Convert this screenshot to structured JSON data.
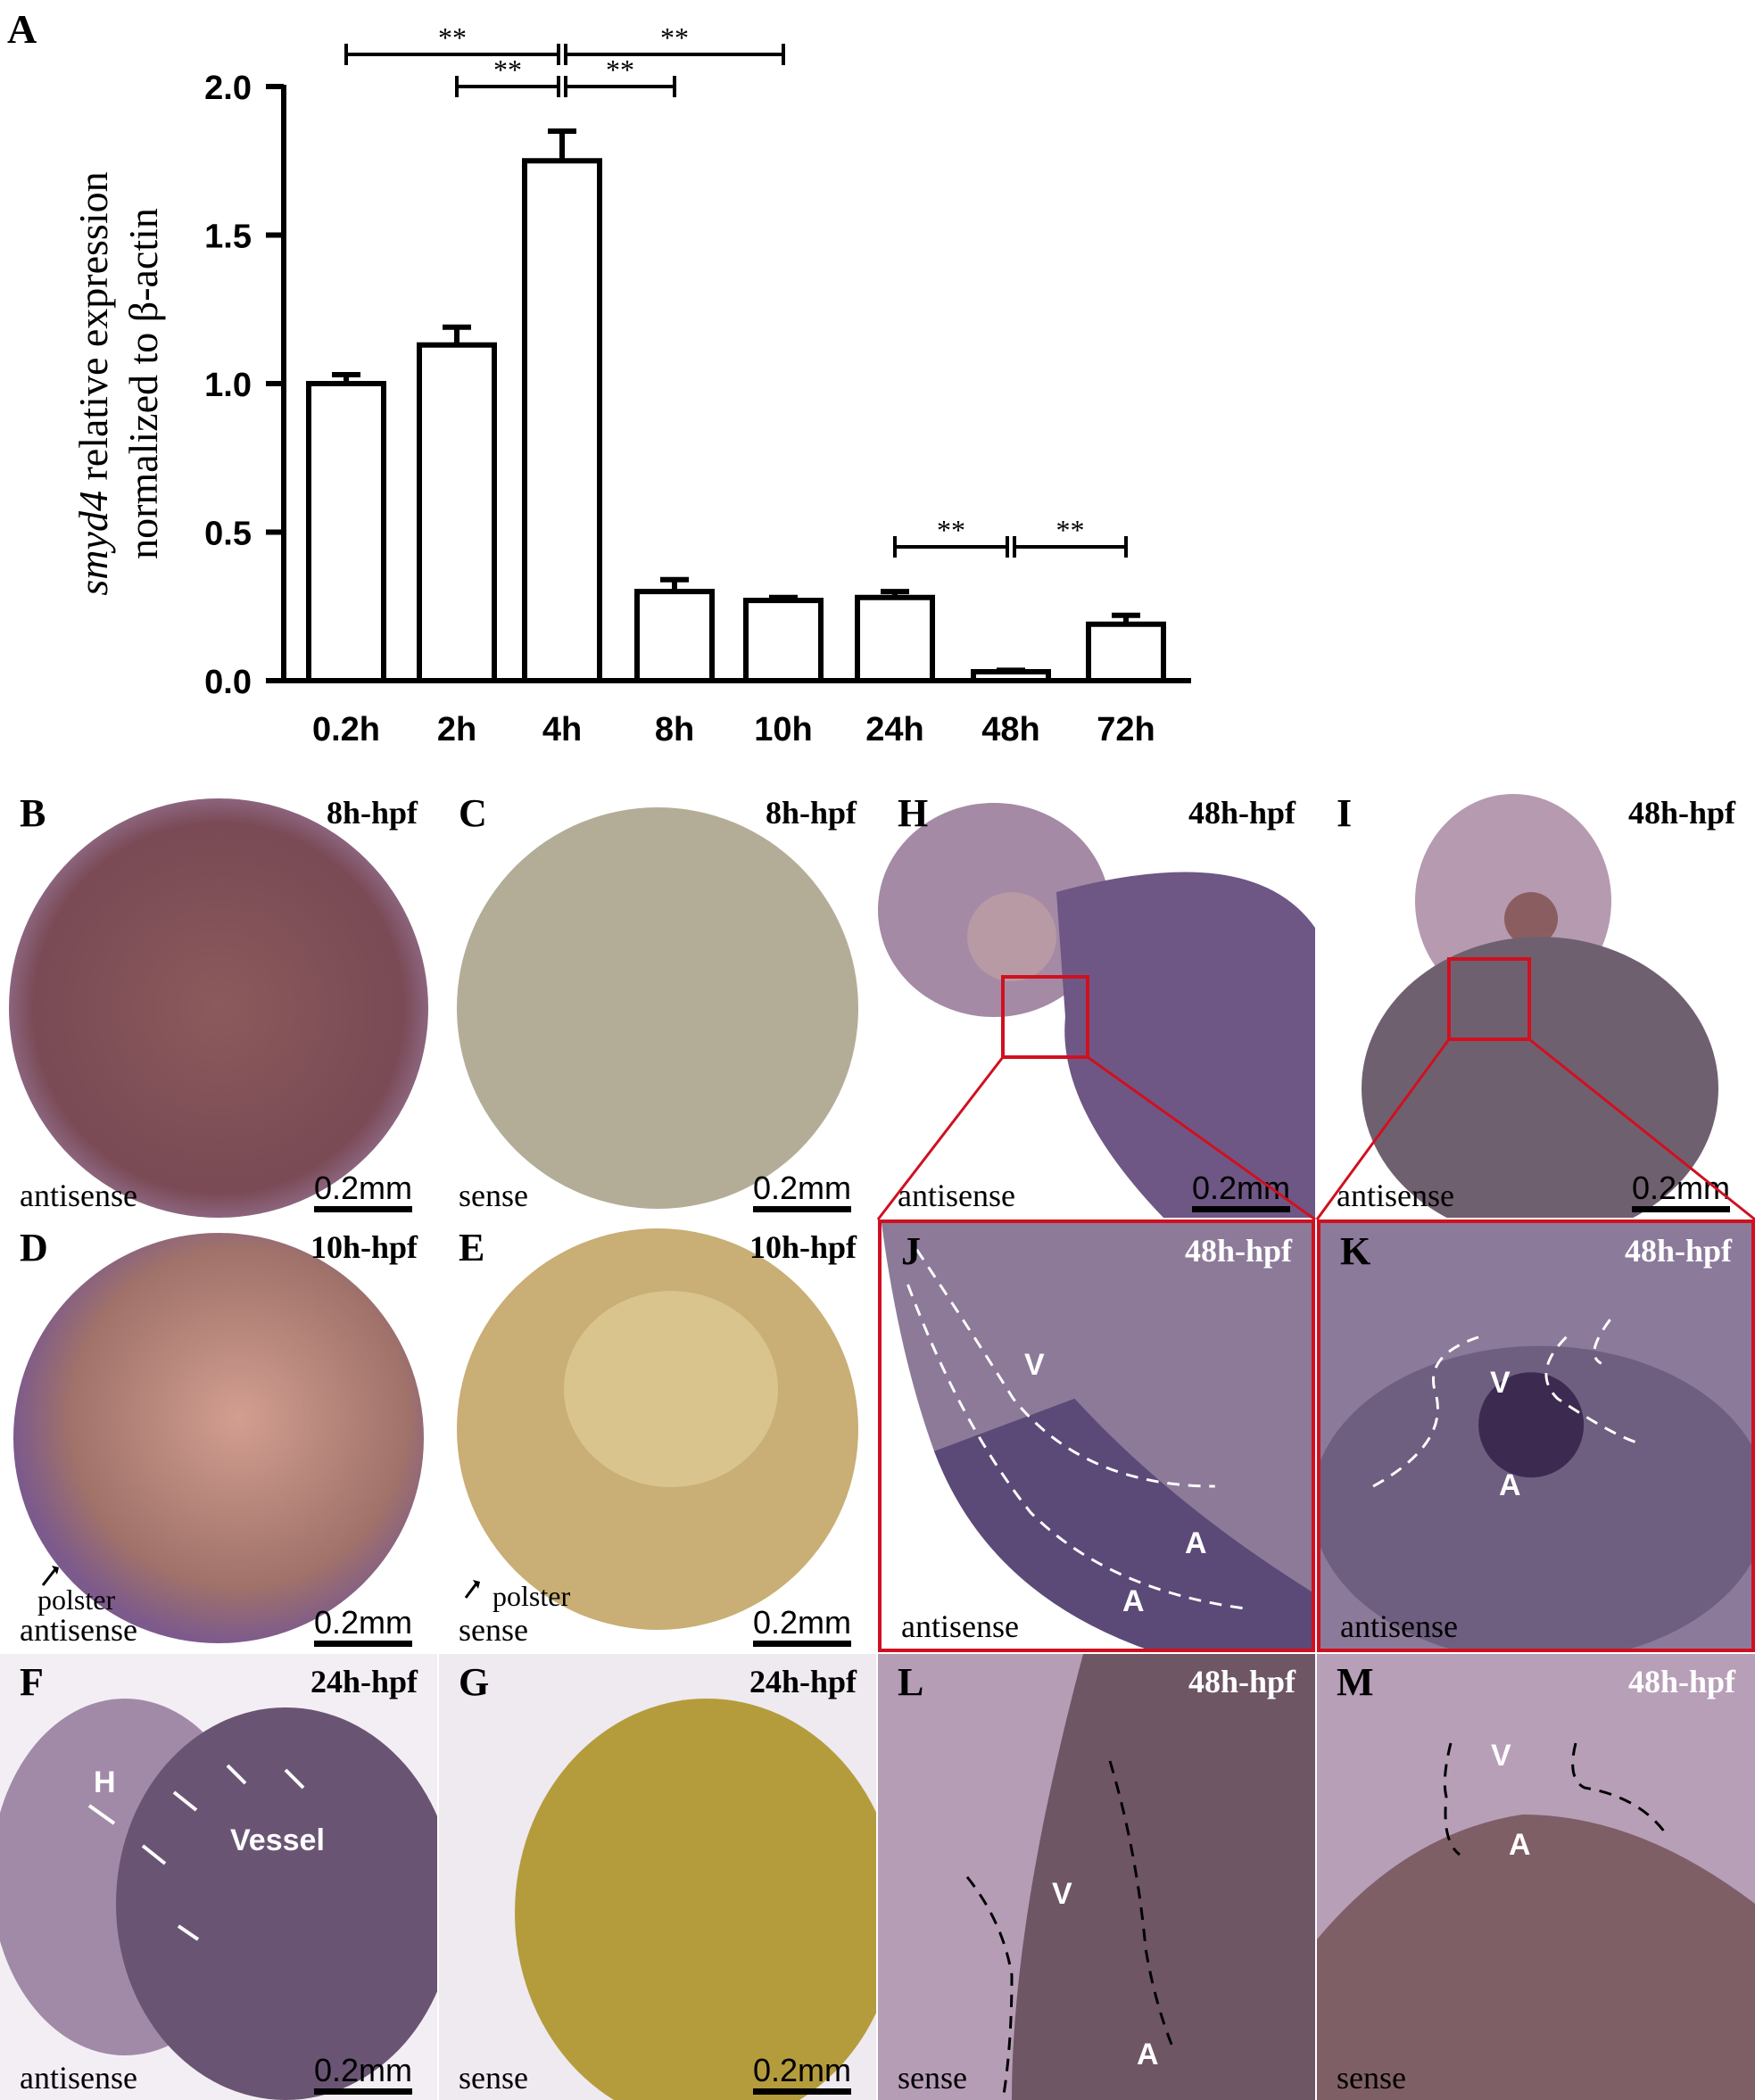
{
  "figure": {
    "panel_a_label": "A"
  },
  "chart_data": {
    "type": "bar",
    "categories": [
      "0.2h",
      "2h",
      "4h",
      "8h",
      "10h",
      "24h",
      "48h",
      "72h"
    ],
    "values": [
      1.0,
      1.13,
      1.75,
      0.3,
      0.27,
      0.28,
      0.03,
      0.19
    ],
    "errors": [
      0.03,
      0.06,
      0.1,
      0.04,
      0.01,
      0.02,
      0.005,
      0.03
    ],
    "ylabel_italic": "smyd4",
    "ylabel_rest": " relative expression",
    "ylabel_line2": "normalized to β-actin",
    "xlabel": "",
    "ylim": [
      0,
      2.0
    ],
    "yticks": [
      "0.0",
      "0.5",
      "1.0",
      "1.5",
      "2.0"
    ],
    "significance": [
      {
        "from": 0,
        "to": 2,
        "label": "**"
      },
      {
        "from": 1,
        "to": 2,
        "label": "**"
      },
      {
        "from": 2,
        "to": 3,
        "label": "**"
      },
      {
        "from": 2,
        "to": 4,
        "label": "**"
      },
      {
        "from": 5,
        "to": 6,
        "label": "**"
      },
      {
        "from": 6,
        "to": 7,
        "label": "**"
      }
    ]
  },
  "panels": [
    {
      "id": "B",
      "time": "8h-hpf",
      "probe": "antisense",
      "scale": "0.2mm"
    },
    {
      "id": "C",
      "time": "8h-hpf",
      "probe": "sense",
      "scale": "0.2mm"
    },
    {
      "id": "H",
      "time": "48h-hpf",
      "probe": "antisense",
      "scale": "0.2mm"
    },
    {
      "id": "I",
      "time": "48h-hpf",
      "probe": "antisense",
      "scale": "0.2mm"
    },
    {
      "id": "D",
      "time": "10h-hpf",
      "probe": "antisense",
      "scale": "0.2mm",
      "note": "polster"
    },
    {
      "id": "E",
      "time": "10h-hpf",
      "probe": "sense",
      "scale": "0.2mm",
      "note": "polster"
    },
    {
      "id": "J",
      "time": "48h-hpf",
      "probe": "antisense",
      "tags": [
        "V",
        "A",
        "A"
      ]
    },
    {
      "id": "K",
      "time": "48h-hpf",
      "probe": "antisense",
      "tags": [
        "V",
        "A"
      ]
    },
    {
      "id": "F",
      "time": "24h-hpf",
      "probe": "antisense",
      "scale": "0.2mm",
      "tags": [
        "H",
        "Vessel"
      ]
    },
    {
      "id": "G",
      "time": "24h-hpf",
      "probe": "sense",
      "scale": "0.2mm"
    },
    {
      "id": "L",
      "time": "48h-hpf",
      "probe": "sense",
      "tags": [
        "V",
        "A"
      ]
    },
    {
      "id": "M",
      "time": "48h-hpf",
      "probe": "sense",
      "tags": [
        "V",
        "A"
      ]
    }
  ]
}
